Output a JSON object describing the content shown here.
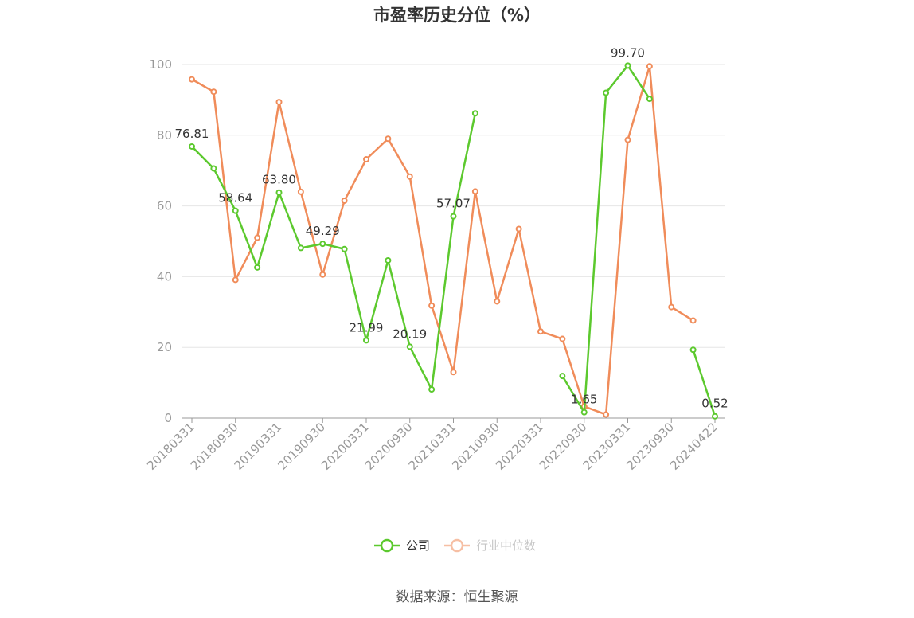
{
  "chart_data": {
    "type": "line",
    "title": "市盈率历史分位（%）",
    "ylim": [
      0,
      100
    ],
    "yticks": [
      0,
      20,
      40,
      60,
      80,
      100
    ],
    "grid": true,
    "legend_position": "bottom",
    "x": [
      "20180331",
      "20180630",
      "20180930",
      "20181231",
      "20190331",
      "20190630",
      "20190930",
      "20191231",
      "20200331",
      "20200630",
      "20200930",
      "20201231",
      "20210331",
      "20210630",
      "20210930",
      "20211231",
      "20220331",
      "20220630",
      "20220930",
      "20221231",
      "20230331",
      "20230630",
      "20230930",
      "20231231",
      "20240422"
    ],
    "xtick_labels": [
      "20180331",
      "20180930",
      "20190331",
      "20190930",
      "20200331",
      "20200930",
      "20210331",
      "20210930",
      "20220331",
      "20220930",
      "20230331",
      "20230930",
      "20240422"
    ],
    "series": [
      {
        "name": "公司",
        "color": "#5cc92e",
        "values": [
          76.81,
          70.6,
          58.64,
          42.6,
          63.8,
          48.1,
          49.29,
          47.8,
          21.99,
          44.6,
          20.19,
          8.1,
          57.07,
          86.2,
          null,
          null,
          null,
          11.9,
          1.65,
          92.0,
          99.7,
          90.3,
          null,
          19.3,
          0.52
        ]
      },
      {
        "name": "行业中位数",
        "color": "#f08c5a",
        "values": [
          95.8,
          92.3,
          39.1,
          51.0,
          89.4,
          64.0,
          40.6,
          61.5,
          73.2,
          79.0,
          68.3,
          31.8,
          13.0,
          64.1,
          33.0,
          53.5,
          24.5,
          22.4,
          3.3,
          1.0,
          78.7,
          99.5,
          31.4,
          27.6,
          null
        ]
      }
    ],
    "data_labels": [
      {
        "series": 0,
        "index": 0,
        "text": "76.81"
      },
      {
        "series": 0,
        "index": 2,
        "text": "58.64"
      },
      {
        "series": 0,
        "index": 4,
        "text": "63.80"
      },
      {
        "series": 0,
        "index": 6,
        "text": "49.29"
      },
      {
        "series": 0,
        "index": 8,
        "text": "21.99"
      },
      {
        "series": 0,
        "index": 10,
        "text": "20.19"
      },
      {
        "series": 0,
        "index": 12,
        "text": "57.07"
      },
      {
        "series": 0,
        "index": 18,
        "text": "1.65"
      },
      {
        "series": 0,
        "index": 20,
        "text": "99.70"
      },
      {
        "series": 0,
        "index": 24,
        "text": "0.52"
      }
    ]
  },
  "footer": {
    "source": "数据来源：恒生聚源"
  }
}
